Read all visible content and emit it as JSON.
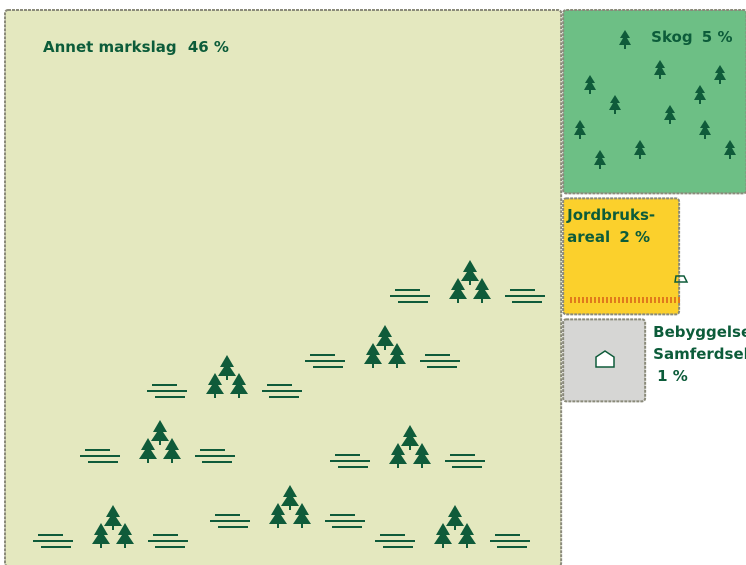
{
  "chart_data": {
    "type": "proportional-squares",
    "categories": [
      "Annet markslag",
      "Skog",
      "Jordbruks-areal",
      "Bebyggelse Samferdsel"
    ],
    "values": [
      46,
      5,
      2,
      1
    ],
    "value_labels": [
      "46 %",
      "5 %",
      "2 %",
      "1 %"
    ],
    "colors": [
      "#e4e8bf",
      "#6dbf85",
      "#fbd02c",
      "#d6d6d4"
    ]
  }
}
